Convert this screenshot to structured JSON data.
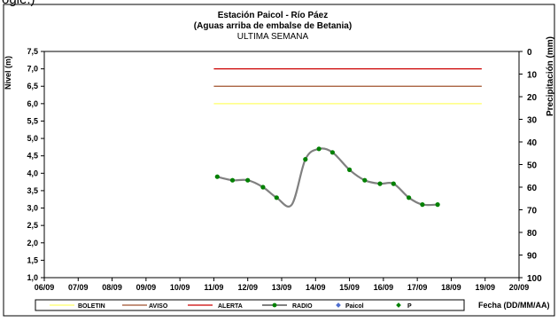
{
  "page": {
    "top_fragment": "ogle.)"
  },
  "chart_data": {
    "type": "line",
    "title": "Estación Paicol  - Río Páez",
    "subtitle": "(Aguas arriba de embalse de Betania)",
    "subtitle2": "ULTIMA SEMANA",
    "ylabel": "Nivel (m)",
    "y2label": "Precipitación (mm)",
    "xlabel": "Fecha  (DD/MM/AA)",
    "ylim": [
      1.0,
      7.5
    ],
    "y_ticks": [
      "1,0",
      "1,5",
      "2,0",
      "2,5",
      "3,0",
      "3,5",
      "4,0",
      "4,5",
      "5,0",
      "5,5",
      "6,0",
      "6,5",
      "7,0",
      "7,5"
    ],
    "y2lim": [
      0,
      100
    ],
    "y2_ticks": [
      "0",
      "10",
      "20",
      "30",
      "40",
      "50",
      "60",
      "70",
      "80",
      "90",
      "100"
    ],
    "x_ticks": [
      "06/09",
      "07/09",
      "08/09",
      "09/09",
      "10/09",
      "11/09",
      "12/09",
      "13/09",
      "14/09",
      "15/09",
      "16/09",
      "17/09",
      "18/09",
      "19/09",
      "20/09"
    ],
    "thresholds": [
      {
        "name": "BOLETIN",
        "value": 6.0,
        "color": "#ffff66"
      },
      {
        "name": "AVISO",
        "value": 6.5,
        "color": "#a0522d"
      },
      {
        "name": "ALERTA",
        "value": 7.0,
        "color": "#cc0000"
      }
    ],
    "threshold_x_range": [
      5.0,
      12.9
    ],
    "radio": {
      "name": "RADIO",
      "color": "#808080",
      "marker_color": "#008000",
      "x": [
        5.1,
        5.55,
        6.0,
        6.45,
        6.85,
        7.3,
        7.7,
        8.1,
        8.5,
        9.0,
        9.45,
        9.9,
        10.3,
        10.75,
        11.15,
        11.6
      ],
      "y": [
        3.9,
        3.8,
        3.8,
        3.6,
        3.3,
        3.1,
        4.4,
        4.7,
        4.6,
        4.1,
        3.8,
        3.7,
        3.7,
        3.3,
        3.1,
        3.1
      ]
    },
    "radio_visible_points": 15,
    "legend": {
      "placement": "bottom",
      "entries": [
        {
          "label": "BOLETIN",
          "kind": "line",
          "color": "#ffff66"
        },
        {
          "label": "AVISO",
          "kind": "line",
          "color": "#a0522d"
        },
        {
          "label": "ALERTA",
          "kind": "line",
          "color": "#cc0000"
        },
        {
          "label": "RADIO",
          "kind": "line-marker",
          "color": "#808080"
        },
        {
          "label": "Paicol",
          "kind": "marker",
          "color": "#4f6fcf"
        },
        {
          "label": "P",
          "kind": "marker",
          "color": "#008000"
        }
      ]
    },
    "grid": false
  }
}
